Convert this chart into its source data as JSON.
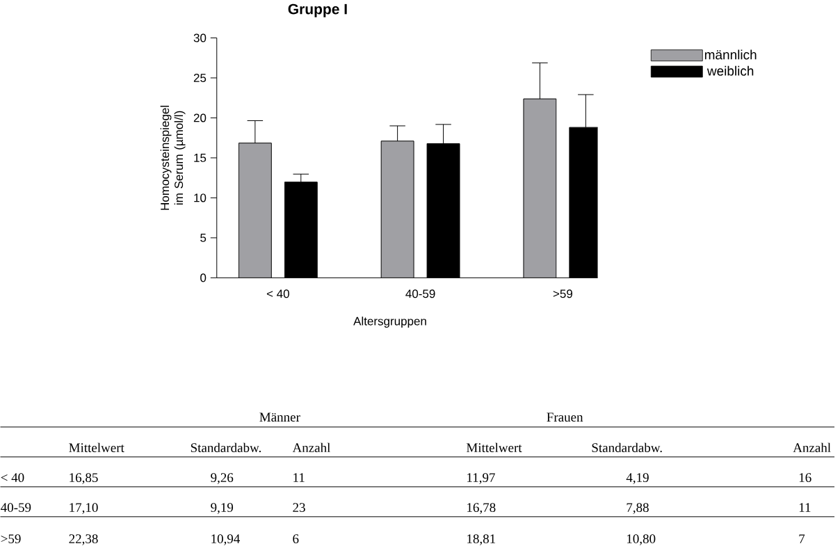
{
  "chart_data": {
    "type": "bar",
    "title": "Gruppe I",
    "xlabel": "Altersgruppen",
    "ylabel": "Homocysteinspiegel im Serum (µmol/l)",
    "categories": [
      "< 40",
      "40-59",
      ">59"
    ],
    "series": [
      {
        "name": "männlich",
        "color": "#a0a0a4",
        "values": [
          16.85,
          17.1,
          22.38
        ],
        "errors": [
          2.8,
          1.9,
          4.5
        ]
      },
      {
        "name": "weiblich",
        "color": "#000000",
        "values": [
          11.97,
          16.78,
          18.81
        ],
        "errors": [
          1.0,
          2.4,
          4.1
        ]
      }
    ],
    "ylim": [
      0,
      30
    ],
    "yticks": [
      0,
      5,
      10,
      15,
      20,
      25,
      30
    ],
    "legend": "right",
    "annotations": [
      "Männer",
      "Frauen",
      "Mittelwert",
      "Standardabw.",
      "Anzahl",
      "Mittelwert",
      "Standardabw.",
      "Anzahl",
      "16,85",
      "9,26",
      "11",
      "11,97",
      "4,19",
      "16",
      "17,10",
      "9,19",
      "23",
      "16,78",
      "7,88",
      "11",
      "22,38",
      "10,94",
      "6",
      "18,81",
      "10,80",
      "7"
    ]
  }
}
